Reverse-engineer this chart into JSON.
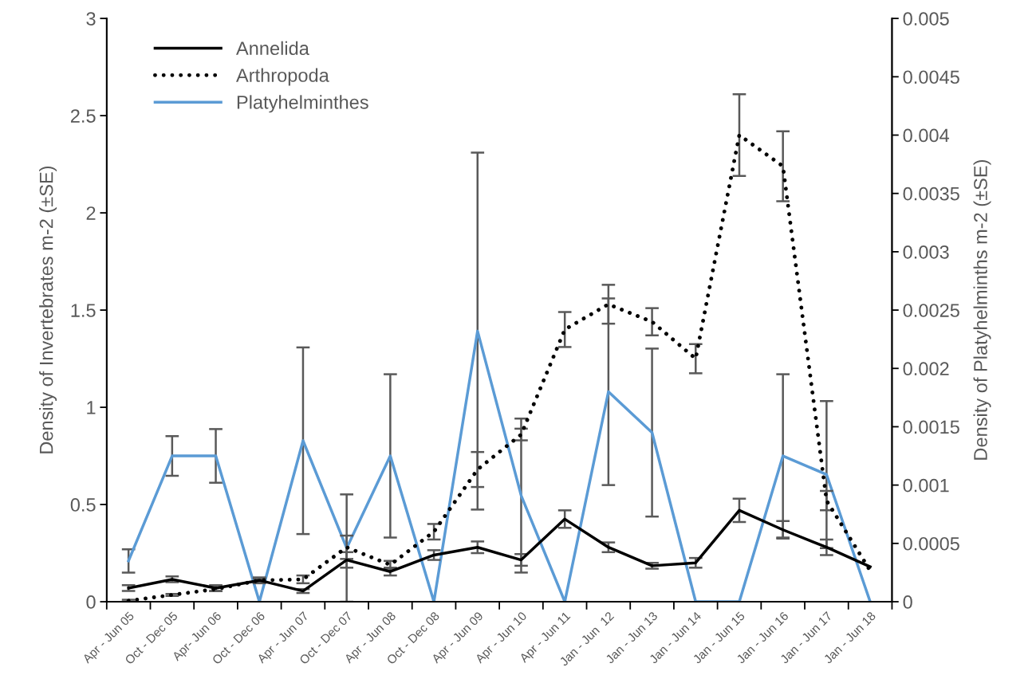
{
  "chart_data": {
    "type": "line",
    "categories": [
      "Apr - Jun 05",
      "Oct - Dec 05",
      "Apr- Jun 06",
      "Oct - Dec 06",
      "Apr - Jun 07",
      "Oct - Dec 07",
      "Apr - Jun 08",
      "Oct - Dec 08",
      "Apr - Jun 09",
      "Apr - Jun 10",
      "Apr - Jun 11",
      "Jan - Jun  12",
      "Jan - Jun 13",
      "Jan - Jun 14",
      "Jan - Jun 15",
      "Jan - Jun 16",
      "Jan - Jun 17",
      "Jan - Jun 18"
    ],
    "ylabel": "Density of Invertebrates m-2 (±SE)",
    "y2label": "Density of Platyhelminths m-2 (±SE)",
    "series": [
      {
        "name": "Annelida",
        "color": "#000000",
        "line_style": "solid",
        "values": [
          0.07,
          0.115,
          0.07,
          0.11,
          0.055,
          0.215,
          0.155,
          0.24,
          0.28,
          0.215,
          0.425,
          0.28,
          0.185,
          0.2,
          0.47,
          0.37,
          0.28,
          0.18
        ],
        "errors": [
          0.015,
          0.015,
          0.015,
          0.015,
          0.01,
          0.04,
          0.02,
          0.025,
          0.03,
          0.03,
          0.045,
          0.025,
          0.015,
          0.025,
          0.06,
          0.045,
          0.04,
          null
        ]
      },
      {
        "name": "Arthropoda",
        "color": "#000000",
        "line_style": "dotted",
        "values": [
          0.005,
          0.035,
          0.065,
          0.11,
          0.115,
          0.28,
          0.19,
          0.36,
          0.68,
          0.86,
          1.4,
          1.53,
          1.44,
          1.25,
          2.4,
          2.24,
          0.52,
          0.16
        ],
        "errors": [
          0.005,
          0.005,
          0.01,
          0.01,
          0.02,
          0.06,
          0.02,
          0.04,
          0.09,
          0.03,
          0.09,
          0.1,
          0.07,
          0.075,
          0.21,
          0.18,
          0.05,
          null
        ]
      },
      {
        "name": "Platyhelminthes",
        "color": "#5b9bd5",
        "line_style": "solid",
        "axis": "y2",
        "values": [
          0.00035,
          0.00125,
          0.00125,
          0,
          0.00138,
          0.00046,
          0.00125,
          0,
          0.00232,
          0.00091,
          0,
          0.0018,
          0.00145,
          0,
          0,
          0.00125,
          0.00109,
          0
        ],
        "errors": [
          0.0001,
          0.00017,
          0.00023,
          null,
          0.0008,
          0.00046,
          0.0007,
          null,
          0.00153,
          0.00066,
          null,
          0.0008,
          0.00072,
          null,
          null,
          0.0007,
          0.00063,
          null
        ]
      }
    ],
    "ylim": [
      0,
      3
    ],
    "yticks": [
      0,
      0.5,
      1,
      1.5,
      2,
      2.5,
      3
    ],
    "y2lim": [
      0,
      0.005
    ],
    "y2ticks": [
      0,
      0.0005,
      0.001,
      0.0015,
      0.002,
      0.0025,
      0.003,
      0.0035,
      0.004,
      0.0045,
      0.005
    ],
    "grid": false,
    "legend": "top left",
    "marker": "none"
  }
}
